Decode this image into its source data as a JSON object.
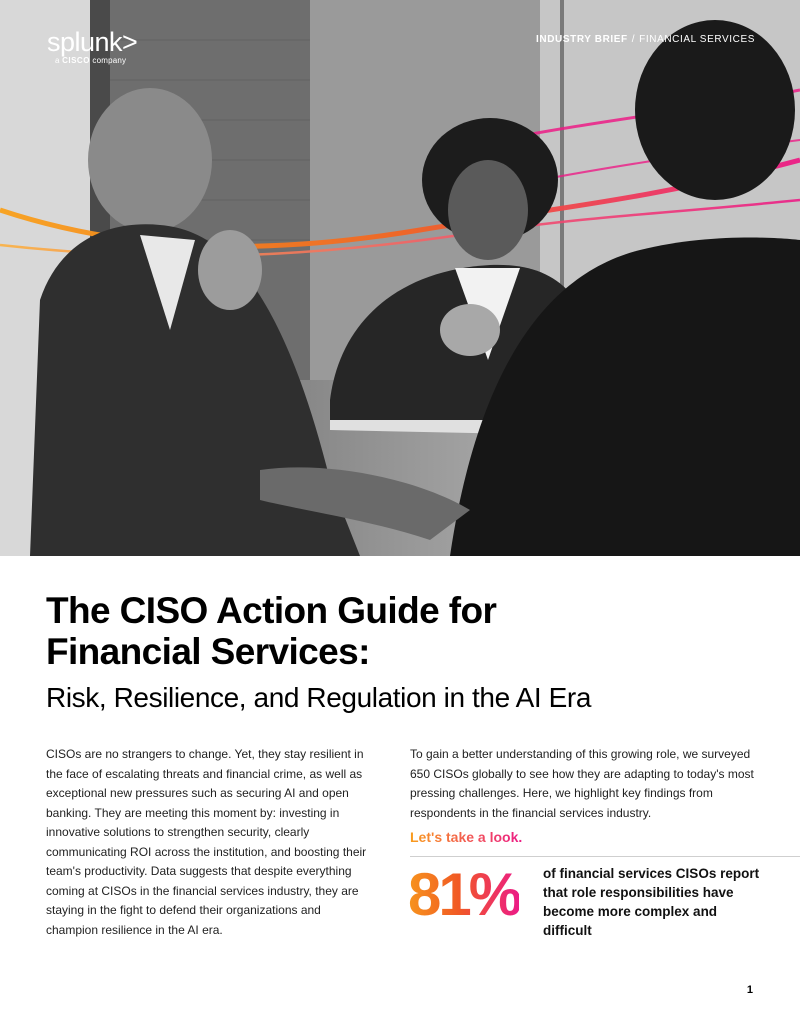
{
  "brand": {
    "logo_word": "splunk>",
    "logo_sub_prefix": "a",
    "logo_sub_brand": "CISCO",
    "logo_sub_suffix": "company"
  },
  "eyebrow": {
    "category": "INDUSTRY BRIEF",
    "separator": "/",
    "industry": "FINANCIAL SERVICES"
  },
  "title": {
    "line1": "The CISO Action Guide for",
    "line2": "Financial Services:",
    "subtitle": "Risk, Resilience, and Regulation in the AI Era"
  },
  "body": {
    "left_paragraph": "CISOs are no strangers to change. Yet, they stay resilient in the face of escalating threats and financial crime, as well as exceptional new pressures such as securing AI and open banking. They are meeting this moment by: investing in innovative solutions to strengthen security, clearly communicating ROI across the institution, and boosting their team's productivity. Data suggests that despite everything coming at CISOs in the financial services industry, they are staying in the fight to defend their organizations and champion resilience in the AI era.",
    "right_paragraph": "To gain a better understanding of this growing role, we surveyed 650 CISOs globally to see how they are adapting to today's most pressing challenges. Here, we highlight key findings from respondents in the financial services industry.",
    "cta": "Let's take a look."
  },
  "stat": {
    "value": "81%",
    "description": "of financial services CISOs report that role responsibilities have become more complex and difficult"
  },
  "page_number": "1",
  "colors": {
    "accent_orange": "#f7941d",
    "accent_pink": "#ec1c86",
    "text": "#111111"
  }
}
